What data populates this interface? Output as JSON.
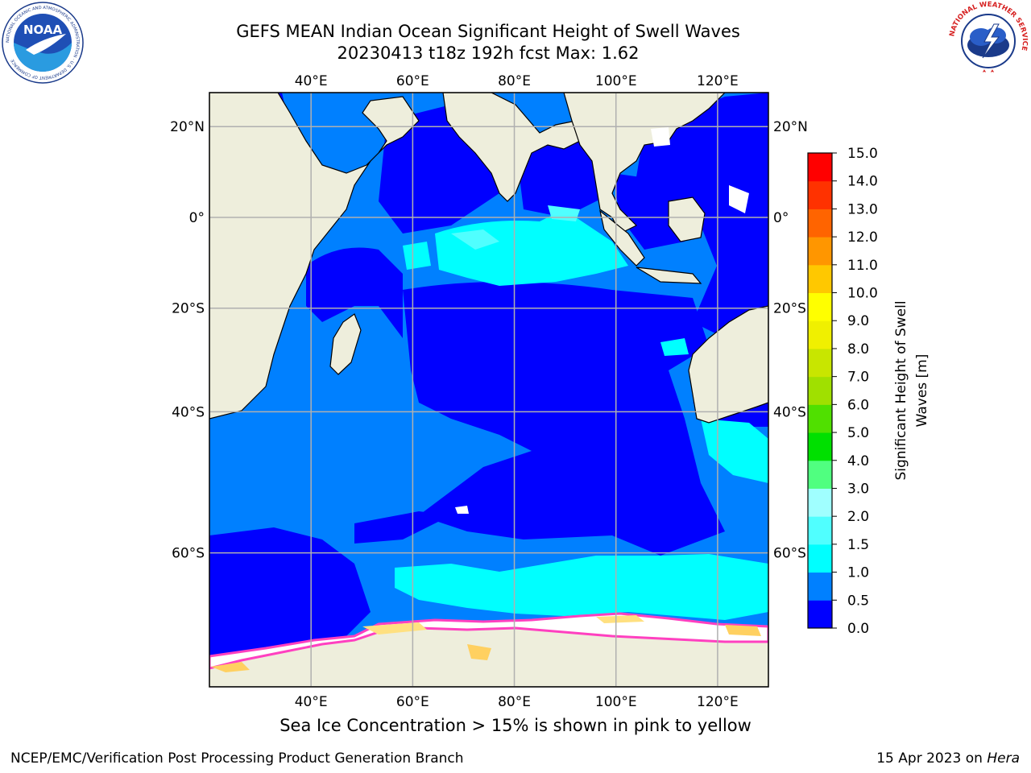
{
  "title_line1": "GEFS MEAN Indian Ocean Significant Height of Swell Waves",
  "title_line2": "20230413 t18z 192h fcst   Max: 1.62",
  "logos": {
    "noaa_text": "NOAA",
    "noaa_ring_text": "NATIONAL OCEANIC AND ATMOSPHERIC ADMINISTRATION · U.S. DEPARTMENT OF COMMERCE",
    "nws_ring_text": "NATIONAL WEATHER SERVICE"
  },
  "map": {
    "lon_ticks_top": [
      "40°E",
      "60°E",
      "80°E",
      "100°E",
      "120°E"
    ],
    "lon_ticks_bottom": [
      "40°E",
      "60°E",
      "80°E",
      "100°E",
      "120°E"
    ],
    "lat_ticks_left": [
      "20°N",
      "0°",
      "20°S",
      "40°S",
      "60°S"
    ],
    "lat_ticks_right": [
      "20°N",
      "0°",
      "20°S",
      "40°S",
      "60°S"
    ],
    "extent": {
      "lon_min": 20,
      "lon_max": 130,
      "lat_min": -72,
      "lat_max": 27
    }
  },
  "colorbar": {
    "label_line1": "Significant Height of Swell",
    "label_line2": "Waves [m]",
    "ticks": [
      "0.0",
      "0.5",
      "1.0",
      "1.5",
      "2.0",
      "3.0",
      "4.0",
      "5.0",
      "6.0",
      "7.0",
      "8.0",
      "9.0",
      "10.0",
      "11.0",
      "12.0",
      "13.0",
      "14.0",
      "15.0"
    ],
    "colors": [
      "#0000ff",
      "#0080ff",
      "#00ffff",
      "#50ffff",
      "#a0ffff",
      "#50ff80",
      "#00e000",
      "#50e000",
      "#a0e000",
      "#c8e600",
      "#f0f000",
      "#ffff00",
      "#ffc800",
      "#ff9600",
      "#ff6400",
      "#ff3200",
      "#ff0000"
    ]
  },
  "note": "Sea Ice Concentration > 15% is shown in pink to yellow",
  "footer_left": "NCEP/EMC/Verification Post Processing Product Generation Branch",
  "footer_right_prefix": "15 Apr 2023 on ",
  "footer_right_host": "Hera"
}
